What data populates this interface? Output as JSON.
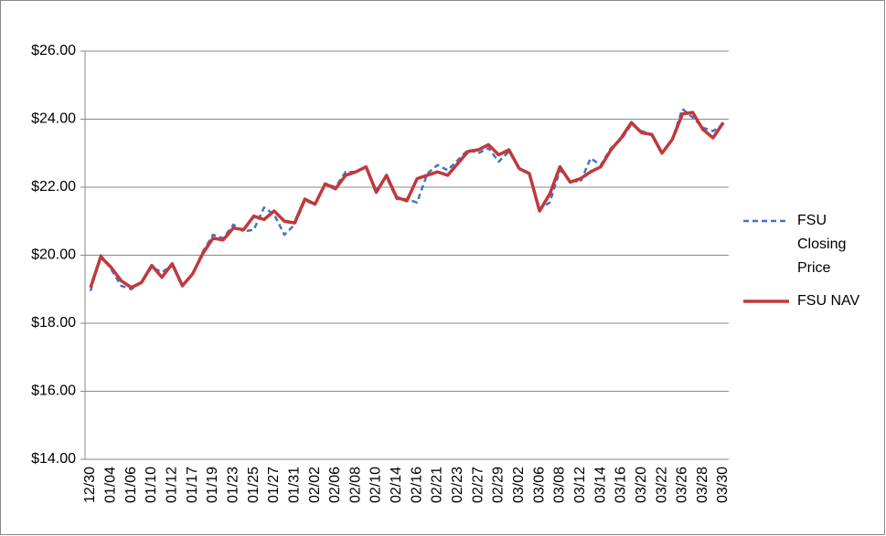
{
  "chart_data": {
    "type": "line",
    "categories": [
      "12/30",
      null,
      "01/04",
      null,
      "01/06",
      null,
      "01/10",
      null,
      "01/12",
      null,
      "01/17",
      null,
      "01/19",
      null,
      "01/23",
      null,
      "01/25",
      null,
      "01/27",
      null,
      "01/31",
      null,
      "02/02",
      null,
      "02/06",
      null,
      "02/08",
      null,
      "02/10",
      null,
      "02/14",
      null,
      "02/16",
      null,
      "02/21",
      null,
      "02/23",
      null,
      "02/27",
      null,
      "02/29",
      null,
      "03/02",
      null,
      "03/06",
      null,
      "03/08",
      null,
      "03/12",
      null,
      "03/14",
      null,
      "03/16",
      null,
      "03/20",
      null,
      "03/22",
      null,
      "03/26",
      null,
      "03/28",
      null,
      "03/30"
    ],
    "series": [
      {
        "name": "FSU Closing Price",
        "color": "#4472c4",
        "dash": true,
        "values": [
          18.95,
          20.0,
          19.6,
          19.1,
          19.0,
          19.2,
          19.65,
          19.5,
          19.7,
          19.1,
          19.45,
          20.1,
          20.6,
          20.5,
          20.9,
          20.7,
          20.75,
          21.4,
          21.2,
          20.6,
          20.9,
          21.6,
          21.5,
          22.1,
          22.0,
          22.45,
          22.45,
          22.6,
          21.9,
          22.3,
          21.65,
          21.65,
          21.55,
          22.4,
          22.65,
          22.5,
          22.8,
          23.1,
          23.0,
          23.15,
          22.75,
          23.05,
          22.55,
          22.4,
          21.35,
          21.55,
          22.5,
          22.2,
          22.15,
          22.85,
          22.65,
          23.15,
          23.4,
          23.85,
          23.65,
          23.55,
          23.0,
          23.4,
          24.3,
          24.05,
          23.75,
          23.65,
          23.85
        ]
      },
      {
        "name": "FSU NAV",
        "color": "#c0393b",
        "dash": false,
        "values": [
          19.05,
          19.95,
          19.65,
          19.25,
          19.05,
          19.2,
          19.7,
          19.35,
          19.75,
          19.1,
          19.45,
          20.05,
          20.5,
          20.45,
          20.8,
          20.75,
          21.15,
          21.05,
          21.3,
          21.0,
          20.95,
          21.65,
          21.5,
          22.1,
          21.95,
          22.35,
          22.45,
          22.6,
          21.85,
          22.35,
          21.7,
          21.6,
          22.25,
          22.35,
          22.45,
          22.35,
          22.7,
          23.05,
          23.1,
          23.25,
          22.95,
          23.1,
          22.55,
          22.4,
          21.3,
          21.8,
          22.6,
          22.15,
          22.25,
          22.45,
          22.6,
          23.1,
          23.45,
          23.9,
          23.6,
          23.55,
          23.0,
          23.4,
          24.15,
          24.2,
          23.7,
          23.45,
          23.9
        ]
      }
    ],
    "ylim": [
      14,
      26
    ],
    "yticks": [
      {
        "value": 14,
        "label": "$14.00"
      },
      {
        "value": 16,
        "label": "$16.00"
      },
      {
        "value": 18,
        "label": "$18.00"
      },
      {
        "value": 20,
        "label": "$20.00"
      },
      {
        "value": 22,
        "label": "$22.00"
      },
      {
        "value": 24,
        "label": "$24.00"
      },
      {
        "value": 26,
        "label": "$26.00"
      }
    ],
    "grid": true,
    "legend": "right"
  }
}
